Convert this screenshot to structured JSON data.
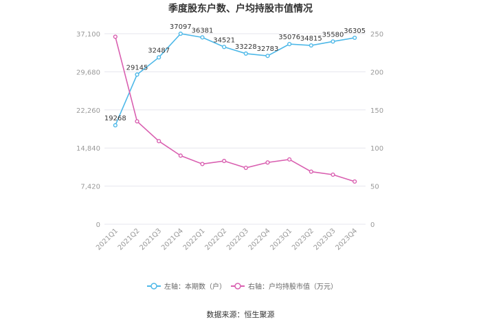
{
  "chart_data": {
    "type": "line",
    "title": "季度股东户数、户均持股市值情况",
    "categories": [
      "2021Q1",
      "2021Q2",
      "2021Q3",
      "2021Q4",
      "2022Q1",
      "2022Q2",
      "2022Q3",
      "2022Q4",
      "2023Q1",
      "2023Q2",
      "2023Q3",
      "2023Q4"
    ],
    "left_axis": {
      "ticks": [
        "0",
        "7,420",
        "14,840",
        "22,260",
        "29,680",
        "37,100"
      ],
      "ylim": [
        0,
        37100
      ]
    },
    "right_axis": {
      "ticks": [
        "0",
        "50",
        "100",
        "150",
        "200",
        "250"
      ],
      "ylim": [
        0,
        250
      ]
    },
    "series": [
      {
        "name": "左轴：本期数（户）",
        "axis": "left",
        "color": "#4db8e8",
        "values": [
          19268,
          29145,
          32487,
          37097,
          36381,
          34521,
          33228,
          32783,
          35076,
          34815,
          35580,
          36305
        ],
        "labels": [
          "19268",
          "29145",
          "32487",
          "37097",
          "36381",
          "34521",
          "33228",
          "32783",
          "35076",
          "34815",
          "35580",
          "36305"
        ]
      },
      {
        "name": "右轴：户均持股市值（万元）",
        "axis": "right",
        "color": "#d95fb0",
        "values": [
          246,
          135,
          109,
          90,
          79,
          83,
          74,
          81,
          85,
          69,
          65,
          56
        ]
      }
    ],
    "grid": true,
    "legend_position": "bottom"
  },
  "source": "数据来源：恒生聚源"
}
